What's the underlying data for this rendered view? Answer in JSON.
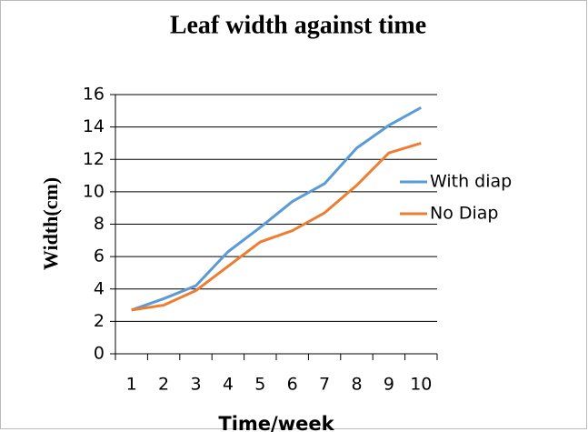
{
  "chart_data": {
    "type": "line",
    "title": "Leaf width against time",
    "x_label": "Time/week",
    "y_label": "Width(cm)",
    "categories": [
      "1",
      "2",
      "3",
      "4",
      "5",
      "6",
      "7",
      "8",
      "9",
      "10"
    ],
    "series": [
      {
        "name": "With diap",
        "color": "#5b9bd5",
        "values": [
          2.7,
          3.4,
          4.2,
          6.3,
          7.8,
          9.4,
          10.5,
          12.7,
          14.1,
          15.2
        ]
      },
      {
        "name": "No Diap",
        "color": "#ed7d31",
        "values": [
          2.7,
          3.0,
          3.9,
          5.4,
          6.9,
          7.6,
          8.7,
          10.4,
          12.4,
          13.0
        ]
      }
    ],
    "ylim": [
      0,
      16
    ],
    "yticks": [
      0,
      2,
      4,
      6,
      8,
      10,
      12,
      14,
      16
    ],
    "grid": true,
    "legend": "right"
  }
}
